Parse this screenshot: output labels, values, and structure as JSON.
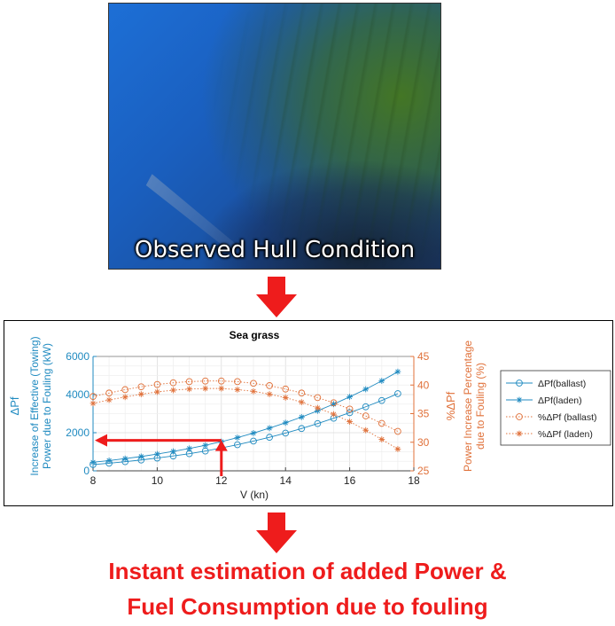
{
  "photo": {
    "caption": "Observed Hull Condition"
  },
  "result": {
    "line1": "Instant estimation of added Power &",
    "line2": "Fuel Consumption due to fouling"
  },
  "colors": {
    "blue": "#1f8ac0",
    "orange": "#e0713a",
    "red": "#ee1c1c",
    "grid": "#e6e6e6"
  },
  "chart_data": {
    "type": "line",
    "title": "Sea grass",
    "xlabel": "V (kn)",
    "xlim": [
      8,
      18
    ],
    "xticks": [
      8,
      10,
      12,
      14,
      16,
      18
    ],
    "ylabel_left_symbol": "ΔPf",
    "ylabel_left_lines": [
      "Increase of Effective (Towing)",
      "Power due to Fouling (kW)"
    ],
    "ylim_left": [
      0,
      6000
    ],
    "yticks_left": [
      0,
      2000,
      4000,
      6000
    ],
    "ylabel_right_symbol": "%ΔPf",
    "ylabel_right_lines": [
      "Power Increase Percentage",
      "due to Fouling (%)"
    ],
    "ylim_right": [
      25,
      45
    ],
    "yticks_right": [
      25,
      30,
      35,
      40,
      45
    ],
    "grid": true,
    "legend_position": "right",
    "x": [
      8,
      8.5,
      9,
      9.5,
      10,
      10.5,
      11,
      11.5,
      12,
      12.5,
      13,
      13.5,
      14,
      14.5,
      15,
      15.5,
      16,
      16.5,
      17,
      17.5
    ],
    "series": [
      {
        "name": "ΔPf(ballast)",
        "axis": "left",
        "marker": "circle",
        "style": "solid",
        "values": [
          330,
          400,
          480,
          570,
          670,
          780,
          900,
          1040,
          1200,
          1370,
          1560,
          1760,
          1980,
          2220,
          2480,
          2760,
          3050,
          3360,
          3690,
          4050
        ]
      },
      {
        "name": "ΔPf(laden)",
        "axis": "left",
        "marker": "star",
        "style": "solid",
        "values": [
          450,
          540,
          640,
          750,
          880,
          1020,
          1170,
          1340,
          1530,
          1740,
          1980,
          2240,
          2520,
          2820,
          3150,
          3500,
          3880,
          4280,
          4720,
          5200
        ]
      },
      {
        "name": "%ΔPf (ballast)",
        "axis": "right",
        "marker": "circle",
        "style": "dotted",
        "values": [
          38.0,
          38.6,
          39.2,
          39.7,
          40.1,
          40.4,
          40.6,
          40.7,
          40.7,
          40.6,
          40.3,
          39.9,
          39.3,
          38.6,
          37.8,
          36.9,
          35.8,
          34.6,
          33.3,
          31.9
        ]
      },
      {
        "name": "%ΔPf (laden)",
        "axis": "right",
        "marker": "star",
        "style": "dotted",
        "values": [
          36.8,
          37.4,
          37.9,
          38.4,
          38.8,
          39.1,
          39.3,
          39.4,
          39.4,
          39.2,
          38.9,
          38.4,
          37.8,
          37.0,
          36.0,
          34.9,
          33.6,
          32.1,
          30.5,
          28.8
        ]
      }
    ],
    "annotation": {
      "x_value": 12,
      "y_value": 1600,
      "color": "#ee1c1c"
    }
  }
}
